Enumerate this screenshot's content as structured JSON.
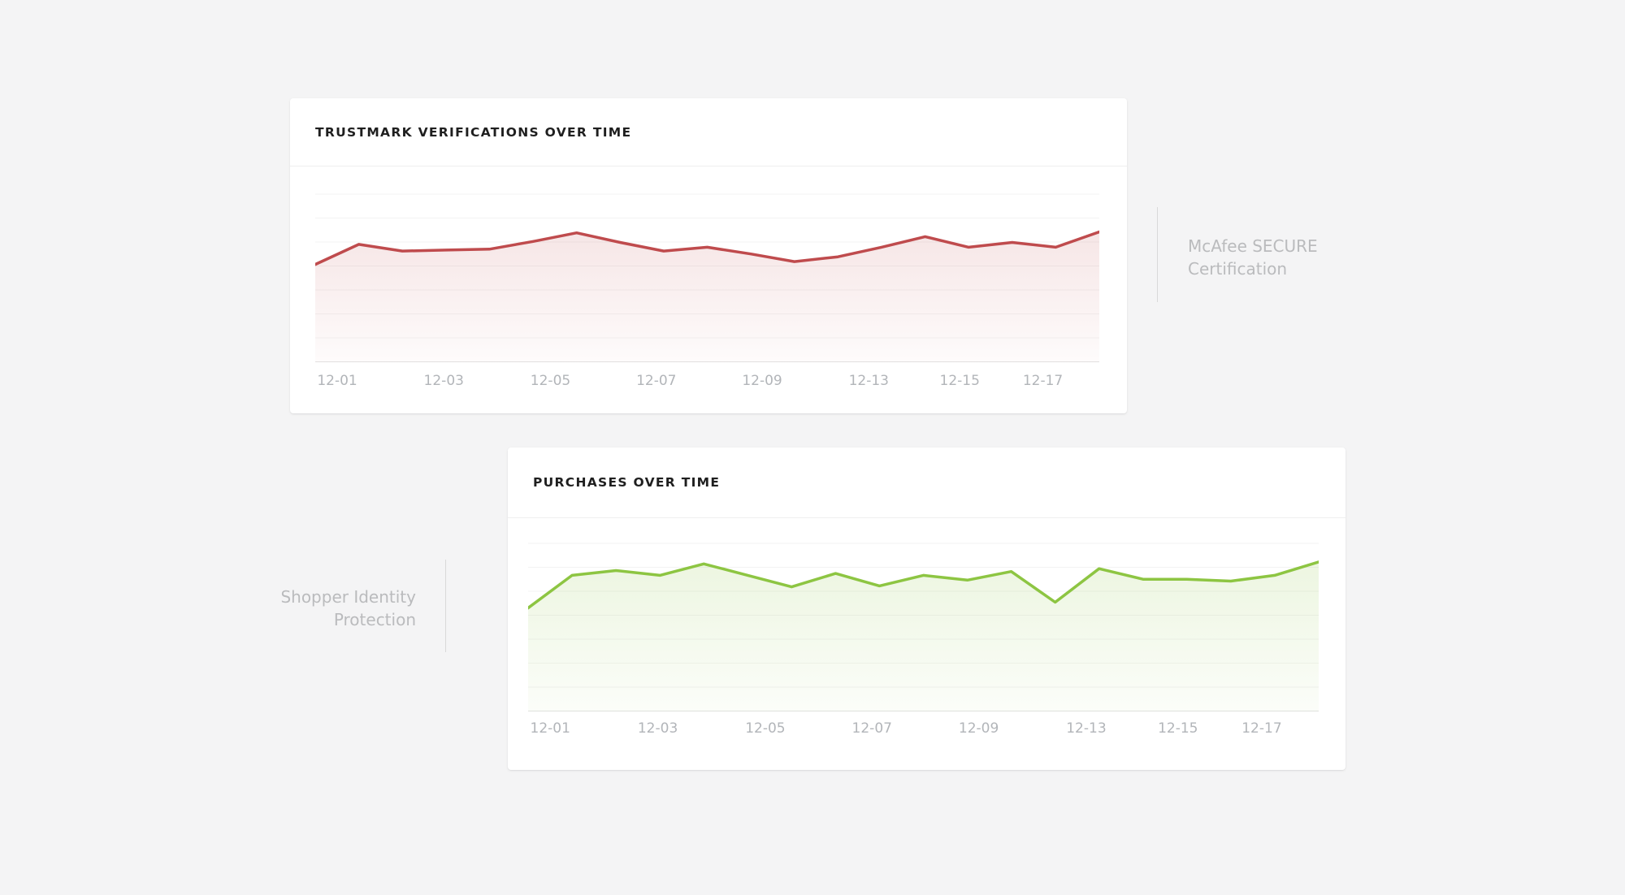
{
  "page": {
    "background_color": "#f4f4f5",
    "card_background": "#ffffff"
  },
  "cards": {
    "trustmark": {
      "title": "TRUSTMARK VERIFICATIONS OVER TIME",
      "side_label": {
        "lines": [
          "McAfee SECURE",
          "Certification"
        ],
        "position": "right-of-card"
      }
    },
    "purchases": {
      "title": "PURCHASES OVER TIME",
      "side_label": {
        "lines": [
          "Shopper Identity",
          "Protection"
        ],
        "position": "left-of-card"
      }
    }
  },
  "chart_data": [
    {
      "id": "trustmark",
      "type": "area",
      "title": "TRUSTMARK VERIFICATIONS OVER TIME",
      "x_tick_labels": [
        "12-01",
        "12-03",
        "12-05",
        "12-07",
        "12-09",
        "12-13",
        "12-15",
        "12-17"
      ],
      "x_tick_positions_pct": [
        2.8,
        16.4,
        30.0,
        43.5,
        57.0,
        70.6,
        82.2,
        92.8
      ],
      "n_points": 19,
      "values": [
        51,
        61.5,
        58,
        58.5,
        59,
        63,
        67.5,
        62.5,
        58,
        60,
        56.5,
        52.5,
        55,
        60,
        65.5,
        60,
        62.5,
        60,
        68
      ],
      "y_unit": "unlabeled-axis (values are % of plot height)",
      "ylim": [
        0,
        100
      ],
      "grid": "horizontal",
      "gridline_count": 8,
      "legend": "none",
      "line_color": "#bf4b4d",
      "fill_top_color": "rgba(191,75,77,0.14)",
      "fill_bottom_color": "rgba(191,75,77,0.02)",
      "grid_color": "#f3f3f3",
      "axis_line_color": "#e2e2e2",
      "tick_label_color": "#b2b5b9"
    },
    {
      "id": "purchases",
      "type": "area",
      "title": "PURCHASES OVER TIME",
      "x_tick_labels": [
        "12-01",
        "12-03",
        "12-05",
        "12-07",
        "12-09",
        "12-13",
        "12-15",
        "12-17"
      ],
      "x_tick_positions_pct": [
        2.8,
        16.4,
        30.0,
        43.5,
        57.0,
        70.6,
        82.2,
        92.8
      ],
      "n_points": 19,
      "values": [
        54,
        71,
        73.5,
        71,
        77,
        71,
        65,
        72,
        65.5,
        71,
        68.5,
        73,
        57,
        74.5,
        69,
        69,
        68,
        71,
        78
      ],
      "y_unit": "unlabeled-axis (values are % of plot height)",
      "ylim": [
        0,
        100
      ],
      "grid": "horizontal",
      "gridline_count": 8,
      "legend": "none",
      "line_color": "#8dc542",
      "fill_top_color": "rgba(141,197,66,0.16)",
      "fill_bottom_color": "rgba(141,197,66,0.03)",
      "grid_color": "#f3f3f3",
      "axis_line_color": "#e2e2e2",
      "tick_label_color": "#b2b5b9"
    }
  ]
}
